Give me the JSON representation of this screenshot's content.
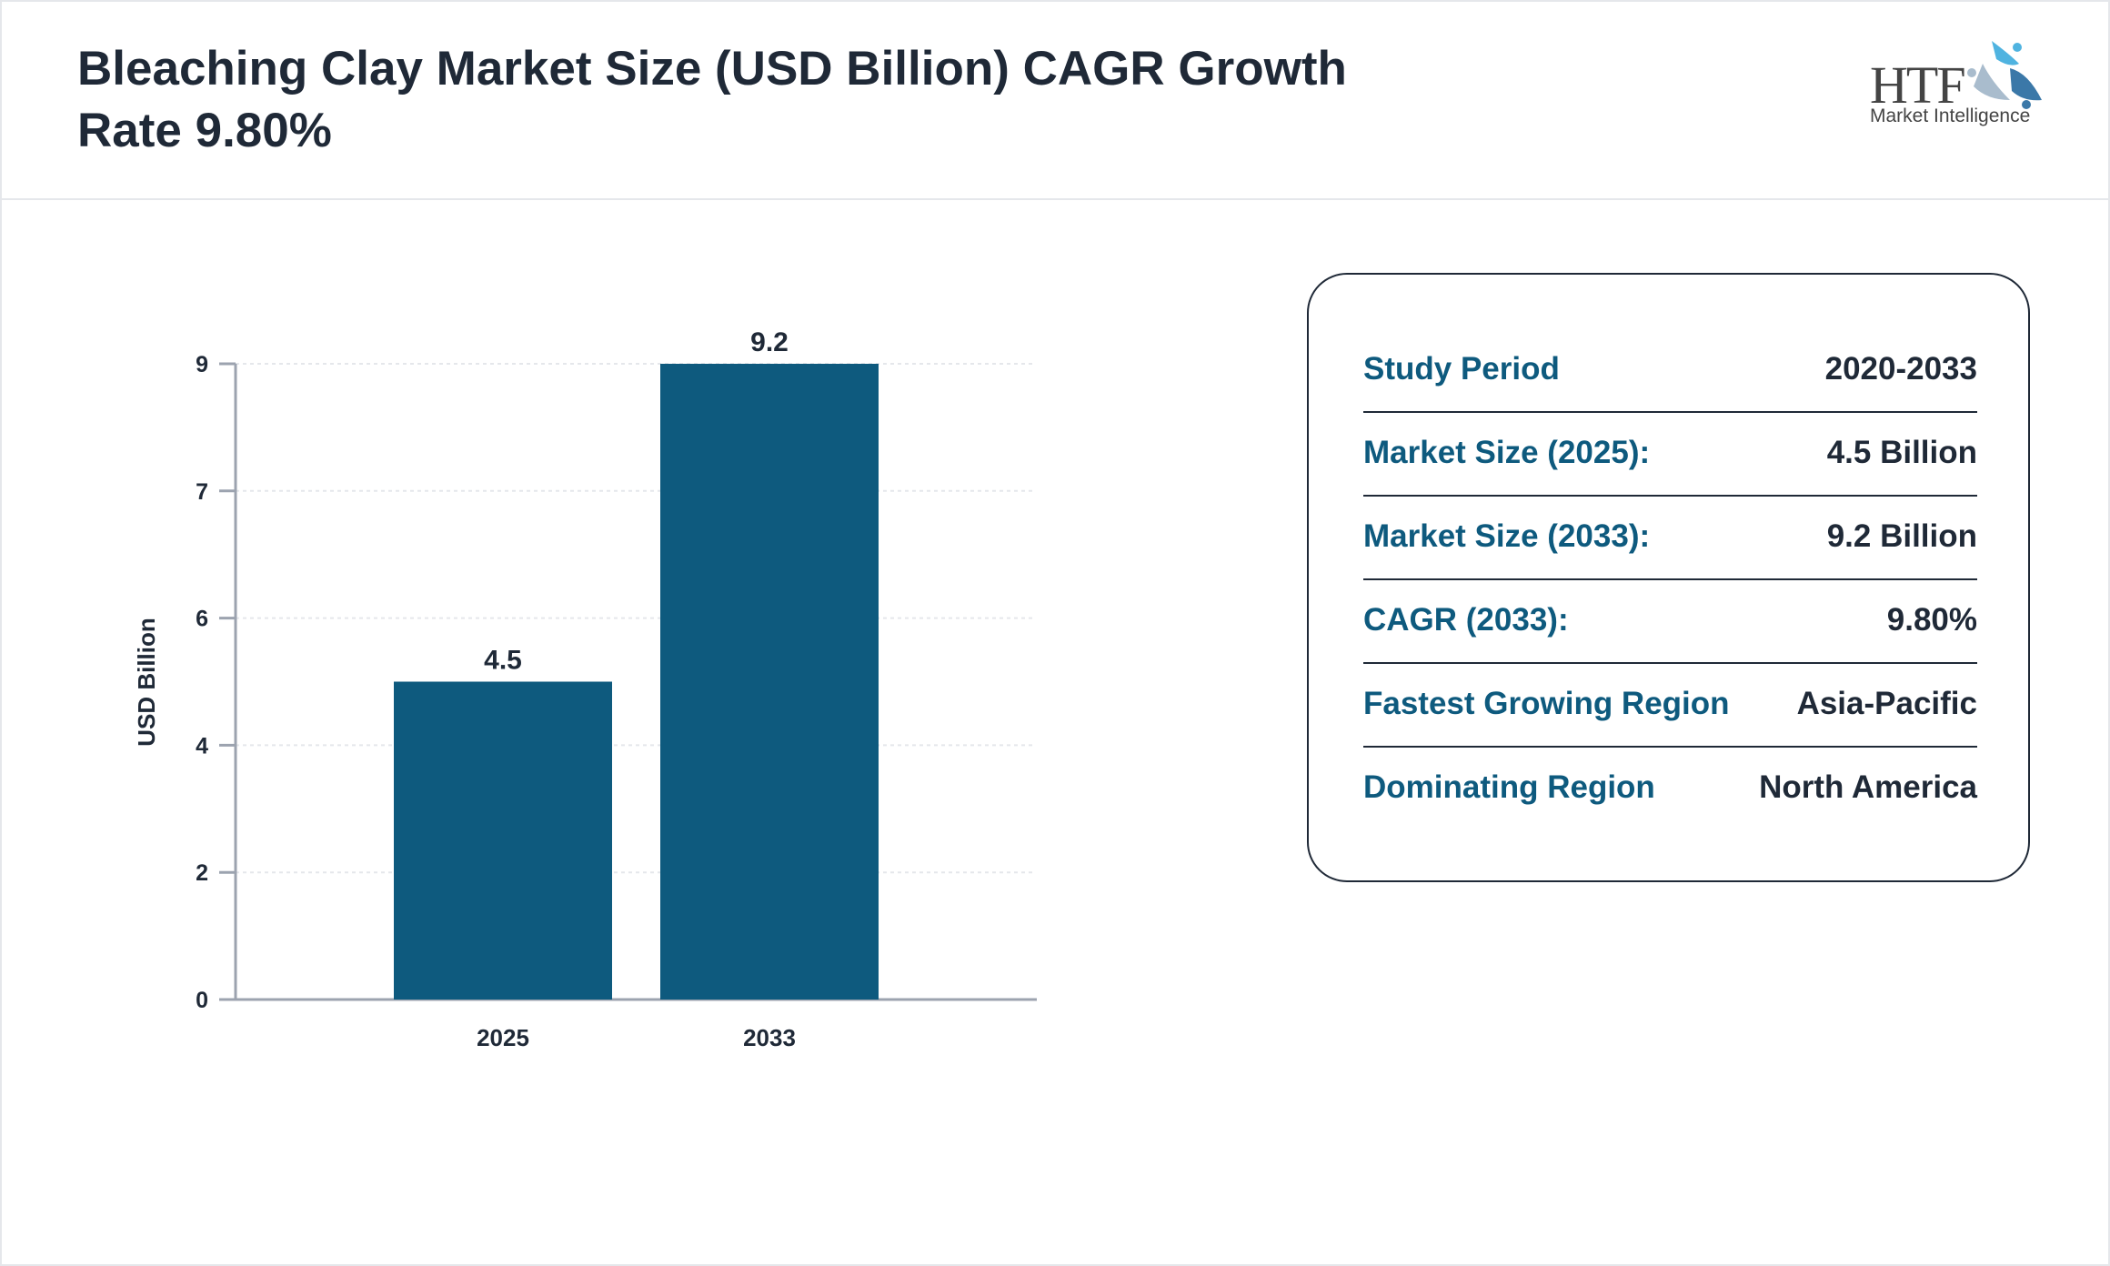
{
  "header": {
    "title": "Bleaching Clay Market Size (USD Billion) CAGR Growth Rate 9.80%",
    "logo_text": "HTF",
    "logo_subtext": "Market Intelligence"
  },
  "chart_data": {
    "type": "bar",
    "title": "",
    "xlabel": "",
    "ylabel": "USD Billion",
    "categories": [
      "2025",
      "2033"
    ],
    "values": [
      4.5,
      9.2
    ],
    "data_labels": [
      "4.5",
      "9.2"
    ],
    "ylim": [
      0,
      9
    ],
    "y_tick_labels": [
      "0",
      "2",
      "4",
      "6",
      "7",
      "9"
    ],
    "grid": true,
    "bar_color": "#0e5a7e"
  },
  "summary": {
    "rows": [
      {
        "label": "Study Period",
        "value": "2020-2033"
      },
      {
        "label": "Market Size (2025):",
        "value": "4.5 Billion"
      },
      {
        "label": "Market Size (2033):",
        "value": "9.2 Billion"
      },
      {
        "label": "CAGR (2033):",
        "value": "9.80%"
      },
      {
        "label": "Fastest Growing Region",
        "value": "Asia-Pacific"
      },
      {
        "label": "Dominating Region",
        "value": "North America"
      }
    ]
  }
}
